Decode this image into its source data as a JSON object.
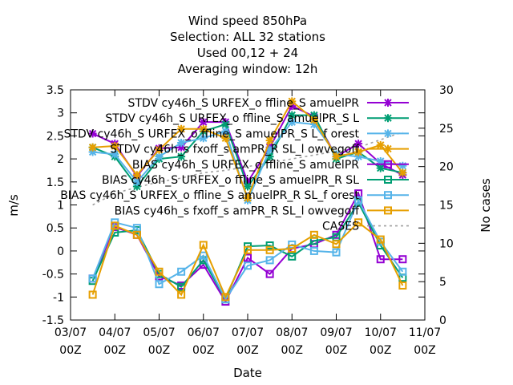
{
  "chart_data": {
    "type": "line",
    "title_lines": [
      "Wind speed 850hPa",
      "Selection: ALL      32 stations",
      "Used  00,12  + 24",
      "Averaging window: 12h"
    ],
    "xlabel": "Date",
    "ylabel": "m/s",
    "y2label": "No cases",
    "ylim": [
      -1.5,
      3.5
    ],
    "y2lim": [
      0,
      30
    ],
    "xlim": [
      0,
      8
    ],
    "x_tick_labels": [
      [
        "03/07",
        "00Z"
      ],
      [
        "04/07",
        "00Z"
      ],
      [
        "05/07",
        "00Z"
      ],
      [
        "06/07",
        "00Z"
      ],
      [
        "07/07",
        "00Z"
      ],
      [
        "08/07",
        "00Z"
      ],
      [
        "09/07",
        "00Z"
      ],
      [
        "10/07",
        "00Z"
      ],
      [
        "11/07",
        "00Z"
      ]
    ],
    "y_tick_labels": [
      "-1.5",
      "-1",
      "-0.5",
      "0",
      "0.5",
      "1",
      "1.5",
      "2",
      "2.5",
      "3",
      "3.5"
    ],
    "y2_tick_labels": [
      "0",
      "5",
      "10",
      "15",
      "20",
      "25",
      "30"
    ],
    "x": [
      0.5,
      1.0,
      1.5,
      2.0,
      2.5,
      3.0,
      3.5,
      4.0,
      4.5,
      5.0,
      5.5,
      6.0,
      6.5,
      7.0,
      7.5
    ],
    "series": [
      {
        "name": "STDV cy46h_S URFEX_o ffline_S amuelPR",
        "color": "#9400d3",
        "marker": "x",
        "values": [
          2.55,
          2.33,
          1.62,
          2.23,
          2.25,
          2.8,
          2.8,
          1.5,
          2.25,
          3.15,
          2.92,
          2.05,
          2.33,
          1.9,
          1.65
        ]
      },
      {
        "name": "STDV cy46h_S URFEX_o ffline_S amuelPR_S L",
        "color": "#009e73",
        "marker": "x",
        "values": [
          2.25,
          2.05,
          1.4,
          2.0,
          2.05,
          2.6,
          2.75,
          1.4,
          2.05,
          2.95,
          2.95,
          2.0,
          2.15,
          1.8,
          1.7
        ]
      },
      {
        "name": "STDV cy46h_S URFEX_o ffline_S amuelPR_S L_f orest",
        "color": "#56b4e9",
        "marker": "x",
        "values": [
          2.15,
          2.1,
          1.5,
          2.05,
          2.35,
          2.45,
          2.6,
          1.1,
          2.2,
          2.8,
          2.75,
          2.1,
          2.05,
          1.95,
          1.85
        ]
      },
      {
        "name": "STDV cy46h_s fxoff_s amPR_R SL_l owvegoff",
        "color": "#e69f00",
        "marker": "x",
        "values": [
          2.25,
          2.28,
          1.65,
          2.2,
          2.65,
          2.65,
          2.45,
          1.15,
          2.4,
          3.25,
          2.85,
          2.05,
          2.15,
          2.3,
          1.7
        ]
      },
      {
        "name": "BIAS cy46h_S URFEX_o ffline_S amuelPR",
        "color": "#9400d3",
        "marker": "square",
        "values": [
          -0.6,
          0.52,
          0.35,
          -0.55,
          -0.75,
          -0.3,
          -1.1,
          -0.15,
          -0.5,
          0.05,
          0.15,
          0.35,
          1.25,
          -0.18,
          -0.18
        ]
      },
      {
        "name": "BIAS cy46h_S URFEX_o ffline_S amuelPR_R SL",
        "color": "#009e73",
        "marker": "square",
        "values": [
          -0.65,
          0.4,
          0.45,
          -0.5,
          -0.78,
          -0.2,
          -1.05,
          0.1,
          0.12,
          -0.12,
          0.22,
          0.3,
          1.05,
          0.12,
          -0.58
        ]
      },
      {
        "name": "BIAS cy46h_S URFEX_o ffline_S amuelPR_R SL_f orest",
        "color": "#56b4e9",
        "marker": "square",
        "values": [
          -0.6,
          0.62,
          0.5,
          -0.72,
          -0.45,
          -0.1,
          -1.05,
          -0.32,
          -0.2,
          0.14,
          0.0,
          -0.03,
          1.1,
          0.2,
          -0.45
        ]
      },
      {
        "name": "BIAS cy46h_s fxoff_s amPR_R SL_l owvegoff",
        "color": "#e69f00",
        "marker": "square",
        "values": [
          -0.95,
          0.55,
          0.35,
          -0.45,
          -0.95,
          0.13,
          -1.0,
          0.02,
          0.02,
          0.05,
          0.35,
          0.15,
          0.62,
          0.25,
          -0.75
        ]
      }
    ],
    "cases_series": {
      "name": "CASES",
      "color": "#a0a0a0",
      "axis": "y2",
      "values": [
        15,
        16.5,
        17.3,
        18,
        18.5,
        19.2,
        19.5,
        20,
        20.5,
        21,
        21.5,
        22,
        22.5,
        23.5,
        24.5
      ]
    },
    "legend_position": "top-right",
    "grid": false
  }
}
